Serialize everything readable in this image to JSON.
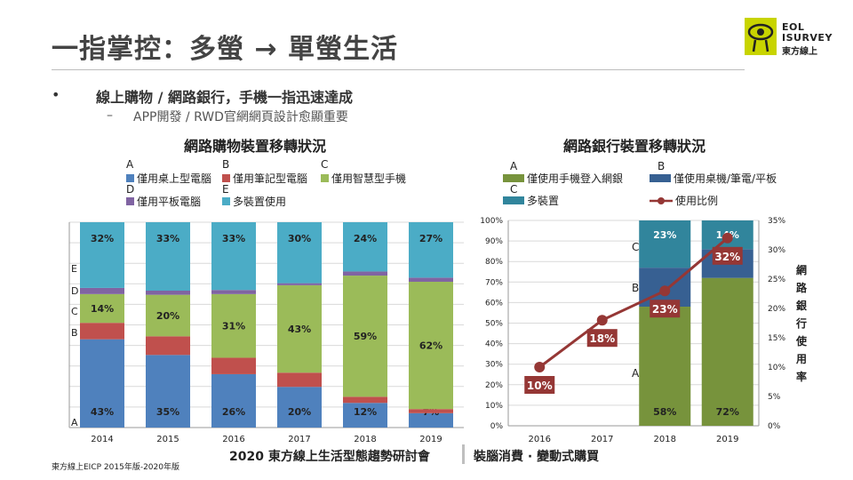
{
  "slide": {
    "title": "一指掌控：多螢 → 單螢生活",
    "bullet_marker": "•",
    "bullet": "線上購物 / 網路銀行，手機一指迅速達成",
    "sub_marker": "–",
    "sub_bullet": "APP開發 / RWD官網網頁設計愈顯重要",
    "footer_main": "2020 東方線上生活型態趨勢研討會",
    "footer_sub": "裝腦消費 · 變動式購買",
    "source": "東方線上EICP 2015年版-2020年版"
  },
  "logo": {
    "line1": "EOL",
    "line2": "ISURVEY",
    "line3": "東方線上",
    "color": "#c8d400"
  },
  "chart_data": [
    {
      "type": "bar",
      "stacked": true,
      "title": "網路購物裝置移轉狀況",
      "categories": [
        "2014",
        "2015",
        "2016",
        "2017",
        "2018",
        "2019"
      ],
      "ylim": [
        0,
        100
      ],
      "legend": [
        {
          "letter": "A",
          "name": "僅用桌上型電腦"
        },
        {
          "letter": "B",
          "name": "僅用筆記型電腦"
        },
        {
          "letter": "C",
          "name": "僅用智慧型手機"
        },
        {
          "letter": "D",
          "name": "僅用平板電腦"
        },
        {
          "letter": "E",
          "name": "多裝置使用"
        }
      ],
      "series": [
        {
          "name": "僅用桌上型電腦",
          "letter": "A",
          "color": "#4f81bd",
          "values": [
            43,
            35,
            26,
            20,
            12,
            7
          ],
          "labels": [
            "43%",
            "35%",
            "26%",
            "20%",
            "12%",
            "7%"
          ]
        },
        {
          "name": "僅用筆記型電腦",
          "letter": "B",
          "color": "#c0504d",
          "values": [
            8,
            9,
            8,
            7,
            3,
            2
          ],
          "labels": [
            "",
            "",
            "",
            "",
            "",
            ""
          ]
        },
        {
          "name": "僅用智慧型手機",
          "letter": "C",
          "color": "#9bbb59",
          "values": [
            14,
            20,
            31,
            43,
            59,
            62
          ],
          "labels": [
            "14%",
            "20%",
            "31%",
            "43%",
            "59%",
            "62%"
          ]
        },
        {
          "name": "僅用平板電腦",
          "letter": "D",
          "color": "#8064a2",
          "values": [
            3,
            2,
            2,
            1,
            2,
            2
          ],
          "labels": [
            "",
            "",
            "",
            "",
            "",
            ""
          ]
        },
        {
          "name": "多裝置使用",
          "letter": "E",
          "color": "#4bacc6",
          "values": [
            32,
            33,
            33,
            30,
            24,
            27
          ],
          "labels": [
            "32%",
            "33%",
            "33%",
            "30%",
            "24%",
            "27%"
          ]
        }
      ],
      "side_letters": [
        "E",
        "D",
        "C",
        "B",
        "A"
      ],
      "grid": true
    },
    {
      "type": "bar+line",
      "stacked": true,
      "title": "網路銀行裝置移轉狀況",
      "categories": [
        "2016",
        "2017",
        "2018",
        "2019"
      ],
      "y_ticks": [
        "0%",
        "10%",
        "20%",
        "30%",
        "40%",
        "50%",
        "60%",
        "70%",
        "80%",
        "90%",
        "100%"
      ],
      "y2_ticks": [
        "0%",
        "5%",
        "10%",
        "15%",
        "20%",
        "25%",
        "30%",
        "35%"
      ],
      "ylim": [
        0,
        100
      ],
      "y2lim": [
        0,
        35
      ],
      "y2label": "網路銀行使用率",
      "legend": [
        {
          "letter": "A",
          "name": "僅使用手機登入網銀"
        },
        {
          "letter": "B",
          "name": "僅使用桌機/筆電/平板"
        },
        {
          "letter": "C",
          "name": "多裝置"
        },
        {
          "letter": "",
          "name": "使用比例"
        }
      ],
      "series": [
        {
          "name": "僅使用手機登入網銀",
          "letter": "A",
          "color": "#77933c",
          "values": [
            null,
            null,
            58,
            72
          ],
          "labels": [
            "",
            "",
            "58%",
            "72%"
          ]
        },
        {
          "name": "僅使用桌機/筆電/平板",
          "letter": "B",
          "color": "#376092",
          "values": [
            null,
            null,
            19,
            14
          ],
          "labels": [
            "",
            "",
            "",
            ""
          ]
        },
        {
          "name": "多裝置",
          "letter": "C",
          "color": "#31859c",
          "values": [
            null,
            null,
            23,
            14
          ],
          "labels": [
            "",
            "",
            "23%",
            "14%"
          ]
        }
      ],
      "line": {
        "name": "使用比例",
        "color": "#953735",
        "values": [
          10,
          18,
          23,
          32
        ],
        "labels": [
          "10%",
          "18%",
          "23%",
          "32%"
        ]
      },
      "side_letters": [
        "C",
        "B",
        "A"
      ]
    }
  ]
}
